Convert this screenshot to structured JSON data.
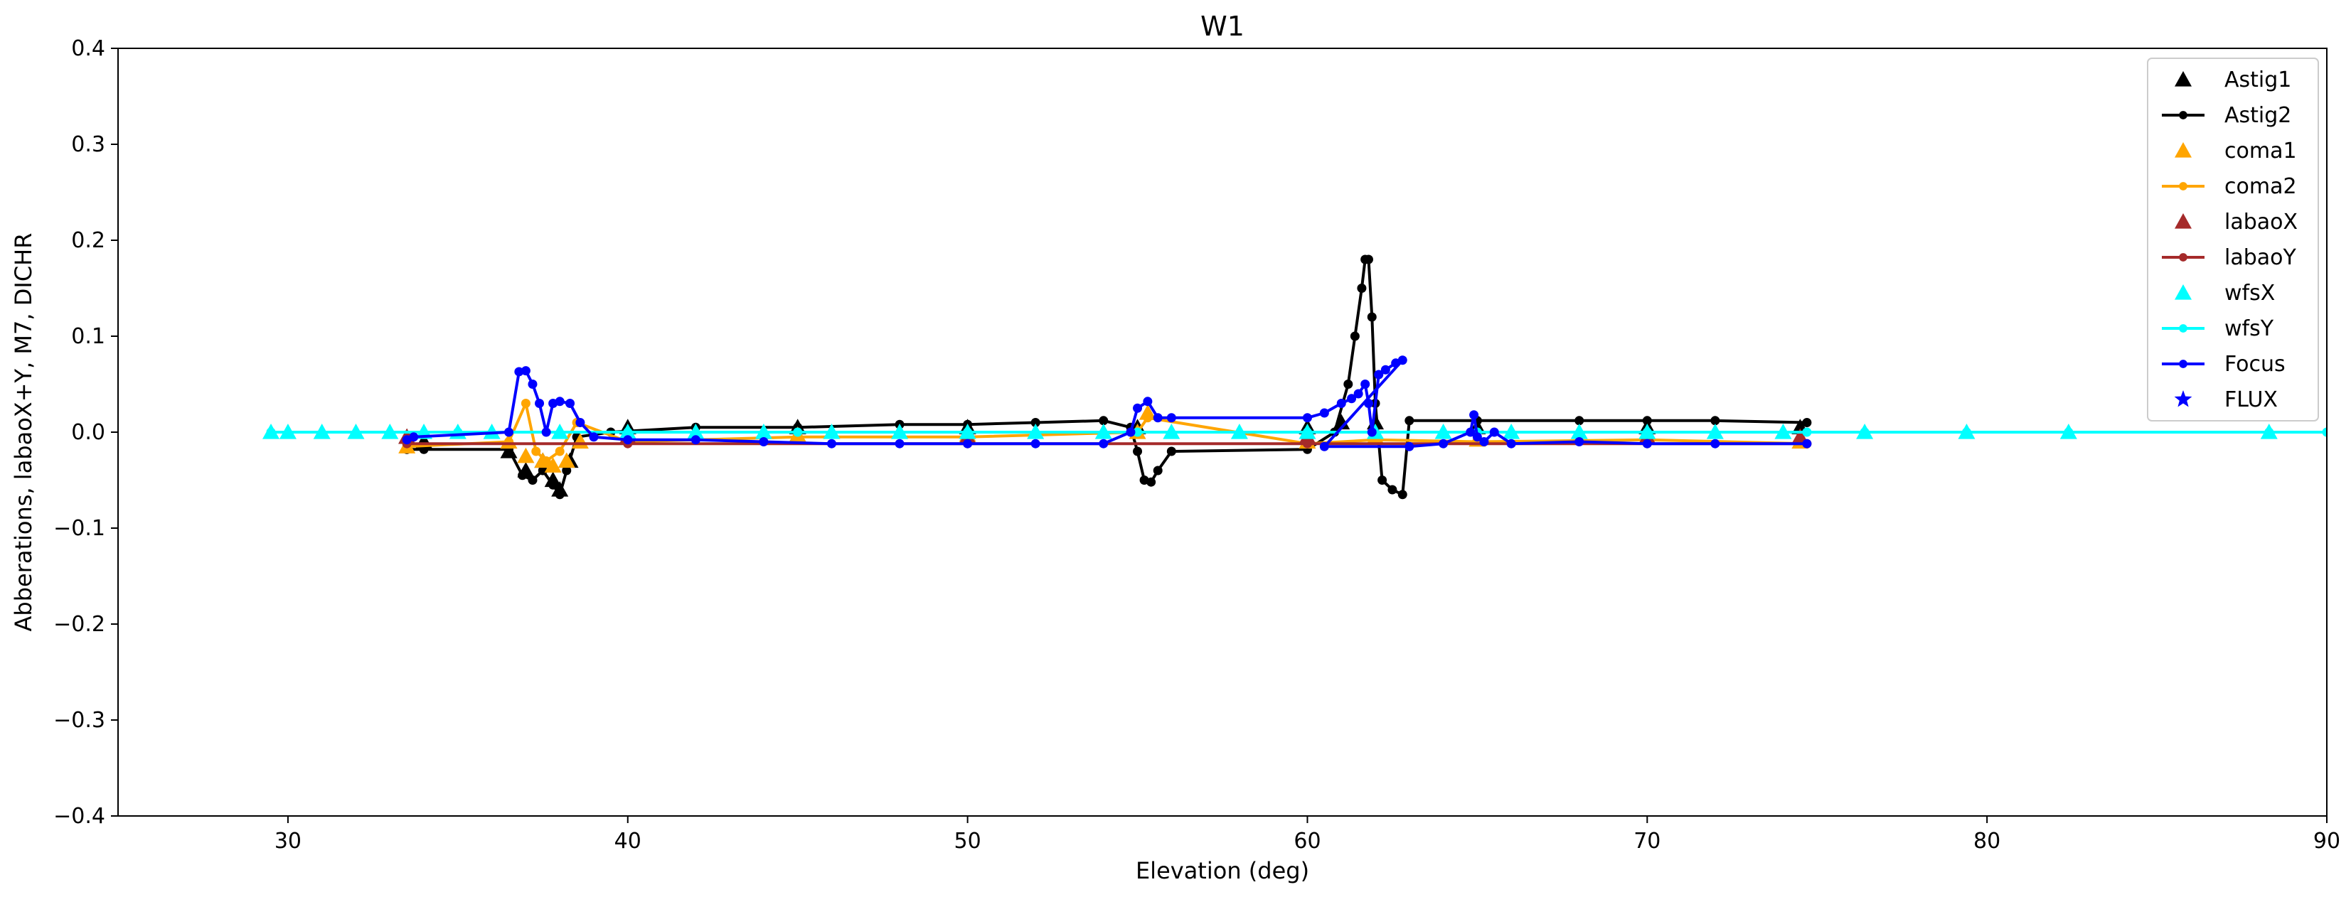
{
  "chart_data": {
    "type": "line",
    "title": "W1",
    "xlabel": "Elevation (deg)",
    "ylabel": "Abberations, labaoX+Y, M7, DICHR",
    "xlim": [
      25,
      90
    ],
    "ylim": [
      -0.4,
      0.4
    ],
    "xticks": [
      "30",
      "40",
      "50",
      "60",
      "70",
      "80",
      "90"
    ],
    "yticks": [
      "−0.4",
      "−0.3",
      "−0.2",
      "−0.1",
      "0.0",
      "0.1",
      "0.2",
      "0.3",
      "0.4"
    ],
    "grid": false,
    "legend_position": "top-right",
    "series": [
      {
        "name": "Astig1",
        "color": "#000000",
        "marker": "triangle",
        "line": false,
        "x": [
          33.5,
          34.0,
          36.5,
          37.0,
          37.5,
          37.8,
          38.0,
          38.3,
          40,
          45,
          50,
          55,
          60,
          61,
          62,
          65,
          70,
          74.5
        ],
        "y": [
          -0.005,
          -0.01,
          -0.02,
          -0.04,
          -0.03,
          -0.05,
          -0.06,
          -0.03,
          0.005,
          0.005,
          0.005,
          0.005,
          0.005,
          0.01,
          0.01,
          0.005,
          0.005,
          0.005
        ]
      },
      {
        "name": "Astig2",
        "color": "#000000",
        "marker": "dot",
        "line": true,
        "x": [
          33.5,
          34.0,
          36.5,
          36.9,
          37.2,
          37.5,
          37.8,
          38.0,
          38.2,
          38.5,
          39.5,
          42,
          45,
          48,
          50,
          52,
          54,
          54.8,
          55.0,
          55.2,
          55.4,
          55.6,
          56,
          60,
          60.8,
          61.2,
          61.4,
          61.6,
          61.7,
          61.8,
          61.9,
          62.0,
          62.2,
          62.5,
          62.8,
          63,
          65,
          68,
          70,
          72,
          74.7
        ],
        "y": [
          -0.018,
          -0.018,
          -0.018,
          -0.045,
          -0.05,
          -0.04,
          -0.055,
          -0.065,
          -0.04,
          -0.005,
          0.0,
          0.005,
          0.005,
          0.008,
          0.008,
          0.01,
          0.012,
          0.005,
          -0.02,
          -0.05,
          -0.052,
          -0.04,
          -0.02,
          -0.018,
          0.0,
          0.05,
          0.1,
          0.15,
          0.18,
          0.18,
          0.12,
          0.03,
          -0.05,
          -0.06,
          -0.065,
          0.012,
          0.012,
          0.012,
          0.012,
          0.012,
          0.01
        ]
      },
      {
        "name": "coma1",
        "color": "#ffa500",
        "marker": "triangle",
        "line": false,
        "x": [
          33.5,
          36.5,
          37.0,
          37.5,
          37.8,
          38.2,
          38.6,
          40,
          45,
          50,
          55,
          55.3,
          60,
          62,
          65,
          70,
          74.5
        ],
        "y": [
          -0.015,
          -0.01,
          -0.025,
          -0.03,
          -0.035,
          -0.03,
          -0.01,
          -0.005,
          -0.003,
          -0.003,
          0.0,
          0.02,
          -0.01,
          -0.005,
          -0.008,
          -0.005,
          -0.01
        ]
      },
      {
        "name": "coma2",
        "color": "#ffa500",
        "marker": "dot",
        "line": true,
        "x": [
          33.5,
          36.5,
          37.0,
          37.3,
          37.6,
          38.0,
          38.5,
          40,
          45,
          50,
          55,
          55.3,
          60,
          62,
          65,
          70,
          74.7
        ],
        "y": [
          -0.015,
          -0.01,
          0.03,
          -0.02,
          -0.03,
          -0.02,
          0.01,
          -0.01,
          -0.005,
          -0.005,
          0.0,
          0.015,
          -0.012,
          -0.008,
          -0.01,
          -0.008,
          -0.012
        ]
      },
      {
        "name": "labaoX",
        "color": "#a52a2a",
        "marker": "triangle",
        "line": false,
        "x": [
          33.5,
          40,
          50,
          60,
          70,
          74.5
        ],
        "y": [
          -0.005,
          -0.005,
          -0.005,
          -0.005,
          -0.005,
          -0.005
        ]
      },
      {
        "name": "labaoY",
        "color": "#a52a2a",
        "marker": "dot",
        "line": true,
        "x": [
          33.5,
          40,
          50,
          60,
          70,
          74.7
        ],
        "y": [
          -0.012,
          -0.012,
          -0.012,
          -0.012,
          -0.012,
          -0.012
        ]
      },
      {
        "name": "wfsX",
        "color": "#00ffff",
        "marker": "triangle",
        "line": false,
        "x": [
          29.5,
          30,
          31,
          32,
          33,
          34,
          35,
          36,
          38,
          40,
          42,
          44,
          46,
          48,
          50,
          52,
          54,
          56,
          58,
          60,
          62,
          64,
          66,
          68,
          70,
          72,
          74,
          76.4,
          79.4,
          82.4,
          88.3
        ],
        "y": [
          0,
          0,
          0,
          0,
          0,
          0,
          0,
          0,
          0,
          0,
          0,
          0,
          0,
          0,
          0,
          0,
          0,
          0,
          0,
          0,
          0,
          0,
          0,
          0,
          0,
          0,
          0,
          0,
          0,
          0,
          0
        ]
      },
      {
        "name": "wfsY",
        "color": "#00ffff",
        "marker": "dot",
        "line": true,
        "x": [
          29.5,
          35,
          40,
          45,
          50,
          55,
          60,
          65,
          70,
          74.7,
          76.4,
          79.4,
          82.4,
          88.3,
          90
        ],
        "y": [
          0,
          0,
          0,
          0,
          0,
          0,
          0,
          0,
          0,
          0,
          0,
          0,
          0,
          0,
          0
        ]
      },
      {
        "name": "Focus",
        "color": "#0000ff",
        "marker": "dot",
        "line": true,
        "x": [
          33.5,
          33.7,
          36.5,
          36.8,
          37.0,
          37.2,
          37.4,
          37.6,
          37.8,
          38.0,
          38.3,
          38.6,
          39.0,
          40,
          42,
          44,
          46,
          48,
          50,
          52,
          54,
          54.8,
          55.0,
          55.3,
          55.6,
          56,
          60,
          60.5,
          61.0,
          61.3,
          61.5,
          61.7,
          61.8,
          61.9,
          62.1,
          62.3,
          62.6,
          62.8,
          60.5,
          63,
          64,
          64.8,
          64.9,
          65.0,
          65.2,
          65.5,
          66,
          68,
          70,
          72,
          74.7
        ],
        "y": [
          -0.008,
          -0.005,
          0.0,
          0.063,
          0.064,
          0.05,
          0.03,
          0.0,
          0.03,
          0.032,
          0.03,
          0.01,
          -0.005,
          -0.008,
          -0.008,
          -0.01,
          -0.012,
          -0.012,
          -0.012,
          -0.012,
          -0.012,
          0.0,
          0.025,
          0.032,
          0.015,
          0.015,
          0.015,
          0.02,
          0.03,
          0.035,
          0.04,
          0.05,
          0.03,
          0.0,
          0.06,
          0.065,
          0.072,
          0.075,
          -0.015,
          -0.015,
          -0.012,
          0.0,
          0.018,
          -0.005,
          -0.01,
          0.0,
          -0.012,
          -0.01,
          -0.012,
          -0.012,
          -0.012
        ]
      },
      {
        "name": "FLUX",
        "color": "#0000ff",
        "marker": "star",
        "line": false,
        "x": [],
        "y": []
      }
    ]
  }
}
